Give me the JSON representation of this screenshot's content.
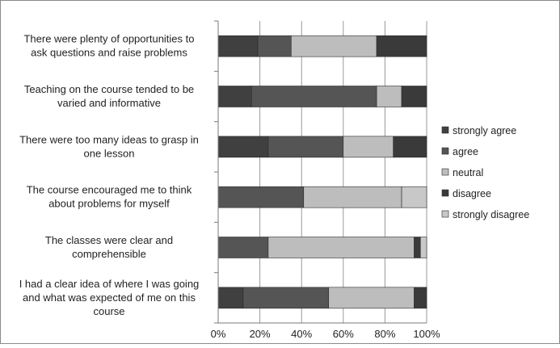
{
  "chart_data": {
    "type": "bar",
    "orientation": "horizontal",
    "stacked": true,
    "percent": true,
    "categories": [
      "There were plenty of opportunities to ask questions and raise problems",
      "Teaching on the course tended to be varied and informative",
      "There were too many ideas to grasp in one lesson",
      "The course encouraged me to think about problems for myself",
      "The classes were clear and comprehensible",
      "I had a clear idea of where I was going and what was expected of me on this course"
    ],
    "category_lines": [
      [
        "There were plenty of opportunities to",
        "ask questions and raise problems"
      ],
      [
        "Teaching on the course tended to be",
        "varied and informative"
      ],
      [
        "There were too many ideas to grasp in",
        "one lesson"
      ],
      [
        "The course encouraged me to think",
        "about problems for myself"
      ],
      [
        "The classes were clear and",
        "comprehensible"
      ],
      [
        "I had a clear idea of where I was going",
        "and what was expected of me on this",
        "course"
      ]
    ],
    "series": [
      {
        "name": "strongly agree",
        "color": "#404040",
        "values": [
          19,
          16,
          24,
          0,
          0,
          12
        ]
      },
      {
        "name": "agree",
        "color": "#555555",
        "values": [
          16,
          60,
          36,
          41,
          24,
          41
        ]
      },
      {
        "name": "neutral",
        "color": "#bdbdbd",
        "values": [
          41,
          12,
          24,
          47,
          70,
          41
        ]
      },
      {
        "name": "disagree",
        "color": "#3a3a3a",
        "values": [
          24,
          12,
          16,
          0,
          3,
          6
        ]
      },
      {
        "name": "strongly disagree",
        "color": "#c8c8c8",
        "values": [
          0,
          0,
          0,
          12,
          3,
          0
        ]
      }
    ],
    "xlim": [
      0,
      100
    ],
    "xticks": [
      "0%",
      "20%",
      "40%",
      "60%",
      "80%",
      "100%"
    ],
    "grid": true,
    "legend_position": "right"
  }
}
